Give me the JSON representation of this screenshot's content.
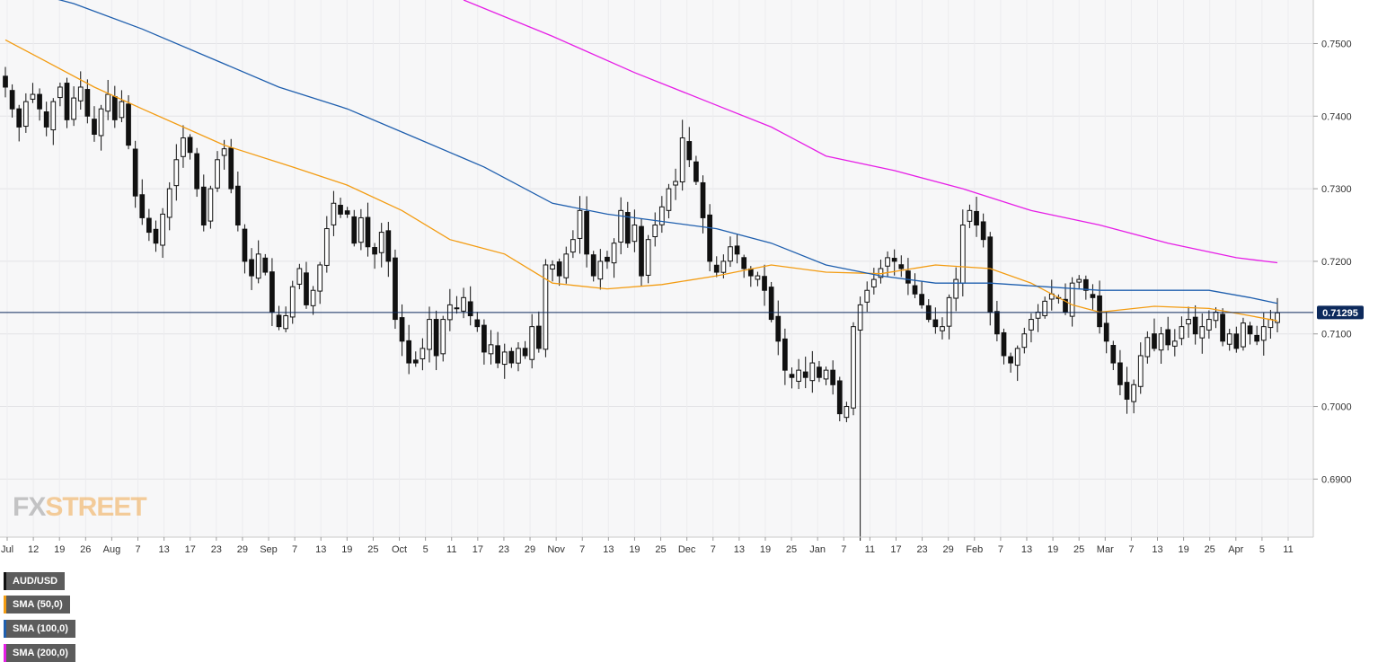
{
  "chart_data": {
    "type": "candlestick",
    "symbol": "AUD/USD",
    "last_price": "0.71295",
    "ylim": [
      0.682,
      0.756
    ],
    "y_ticks": [
      "0.7500",
      "0.7400",
      "0.7300",
      "0.7200",
      "0.7100",
      "0.7000",
      "0.6900"
    ],
    "x_ticks": [
      "Jul",
      "12",
      "19",
      "26",
      "Aug",
      "7",
      "13",
      "17",
      "23",
      "29",
      "Sep",
      "7",
      "13",
      "19",
      "25",
      "Oct",
      "5",
      "11",
      "17",
      "23",
      "29",
      "Nov",
      "7",
      "13",
      "19",
      "25",
      "Dec",
      "7",
      "13",
      "19",
      "25",
      "Jan",
      "7",
      "11",
      "17",
      "23",
      "29",
      "Feb",
      "7",
      "13",
      "19",
      "25",
      "Mar",
      "7",
      "13",
      "19",
      "25",
      "Apr",
      "5",
      "11"
    ],
    "grid": true,
    "legend": [
      {
        "label": "AUD/USD",
        "color": "#111111"
      },
      {
        "label": "SMA (50,0)",
        "color": "#f39c12"
      },
      {
        "label": "SMA (100,0)",
        "color": "#1f5fae"
      },
      {
        "label": "SMA (200,0)",
        "color": "#e61ee6"
      }
    ],
    "close_path": [
      0.744,
      0.741,
      0.7385,
      0.742,
      0.743,
      0.741,
      0.7385,
      0.742,
      0.744,
      0.7395,
      0.7425,
      0.744,
      0.74,
      0.7375,
      0.741,
      0.743,
      0.7395,
      0.742,
      0.736,
      0.729,
      0.726,
      0.724,
      0.7225,
      0.7265,
      0.73,
      0.734,
      0.737,
      0.735,
      0.73,
      0.725,
      0.73,
      0.734,
      0.7355,
      0.73,
      0.725,
      0.72,
      0.718,
      0.721,
      0.7185,
      0.713,
      0.711,
      0.7125,
      0.7165,
      0.719,
      0.714,
      0.716,
      0.7195,
      0.7245,
      0.728,
      0.7265,
      0.7265,
      0.7225,
      0.726,
      0.722,
      0.721,
      0.724,
      0.72,
      0.712,
      0.709,
      0.706,
      0.706,
      0.708,
      0.712,
      0.707,
      0.712,
      0.714,
      0.7135,
      0.715,
      0.7125,
      0.711,
      0.7075,
      0.7085,
      0.706,
      0.7075,
      0.706,
      0.708,
      0.707,
      0.711,
      0.708,
      0.7195,
      0.7195,
      0.718,
      0.721,
      0.723,
      0.727,
      0.721,
      0.718,
      0.72,
      0.72,
      0.7225,
      0.727,
      0.7225,
      0.725,
      0.718,
      0.723,
      0.725,
      0.7275,
      0.73,
      0.731,
      0.737,
      0.734,
      0.731,
      0.726,
      0.72,
      0.7185,
      0.72,
      0.722,
      0.721,
      0.719,
      0.718,
      0.718,
      0.716,
      0.712,
      0.709,
      0.705,
      0.704,
      0.705,
      0.704,
      0.706,
      0.704,
      0.705,
      0.703,
      0.699,
      0.7,
      0.711,
      0.714,
      0.716,
      0.7175,
      0.719,
      0.7205,
      0.72,
      0.719,
      0.717,
      0.7155,
      0.714,
      0.712,
      0.711,
      0.711,
      0.715,
      0.7175,
      0.725,
      0.727,
      0.725,
      0.723,
      0.713,
      0.71,
      0.707,
      0.706,
      0.708,
      0.71,
      0.712,
      0.713,
      0.7145,
      0.7155,
      0.715,
      0.713,
      0.717,
      0.7175,
      0.716,
      0.715,
      0.711,
      0.709,
      0.706,
      0.703,
      0.701,
      0.703,
      0.707,
      0.7095,
      0.708,
      0.71,
      0.7085,
      0.709,
      0.711,
      0.712,
      0.71,
      0.711,
      0.712,
      0.713,
      0.709,
      0.71,
      0.708,
      0.7115,
      0.71,
      0.709,
      0.711,
      0.712,
      0.7129
    ],
    "series": [
      {
        "name": "SMA (50,0)",
        "color": "#f39c12",
        "points": [
          [
            0,
            0.7505
          ],
          [
            5,
            0.748
          ],
          [
            13,
            0.744
          ],
          [
            20,
            0.741
          ],
          [
            32,
            0.736
          ],
          [
            42,
            0.733
          ],
          [
            50,
            0.7305
          ],
          [
            58,
            0.727
          ],
          [
            65,
            0.723
          ],
          [
            73,
            0.721
          ],
          [
            80,
            0.717
          ],
          [
            88,
            0.7162
          ],
          [
            96,
            0.7168
          ],
          [
            104,
            0.718
          ],
          [
            112,
            0.7195
          ],
          [
            120,
            0.7185
          ],
          [
            128,
            0.7183
          ],
          [
            136,
            0.7195
          ],
          [
            144,
            0.719
          ],
          [
            150,
            0.717
          ],
          [
            156,
            0.714
          ],
          [
            160,
            0.713
          ],
          [
            168,
            0.7138
          ],
          [
            176,
            0.7135
          ],
          [
            182,
            0.7125
          ],
          [
            186,
            0.7118
          ]
        ]
      },
      {
        "name": "SMA (100,0)",
        "color": "#1f5fae",
        "points": [
          [
            0,
            0.758
          ],
          [
            10,
            0.7555
          ],
          [
            20,
            0.752
          ],
          [
            30,
            0.748
          ],
          [
            40,
            0.744
          ],
          [
            50,
            0.741
          ],
          [
            60,
            0.737
          ],
          [
            70,
            0.733
          ],
          [
            80,
            0.728
          ],
          [
            88,
            0.7265
          ],
          [
            96,
            0.7255
          ],
          [
            104,
            0.7245
          ],
          [
            112,
            0.7225
          ],
          [
            120,
            0.7195
          ],
          [
            128,
            0.718
          ],
          [
            136,
            0.717
          ],
          [
            144,
            0.717
          ],
          [
            152,
            0.7165
          ],
          [
            160,
            0.716
          ],
          [
            168,
            0.716
          ],
          [
            176,
            0.716
          ],
          [
            182,
            0.715
          ],
          [
            186,
            0.7142
          ]
        ]
      },
      {
        "name": "SMA (200,0)",
        "color": "#e61ee6",
        "points": [
          [
            67,
            0.756
          ],
          [
            80,
            0.751
          ],
          [
            92,
            0.746
          ],
          [
            104,
            0.7415
          ],
          [
            112,
            0.7385
          ],
          [
            120,
            0.7345
          ],
          [
            130,
            0.7325
          ],
          [
            140,
            0.73
          ],
          [
            150,
            0.727
          ],
          [
            160,
            0.725
          ],
          [
            170,
            0.7225
          ],
          [
            180,
            0.7205
          ],
          [
            186,
            0.7198
          ]
        ]
      }
    ]
  },
  "watermark": {
    "part1": "FX",
    "part2": "STREET"
  }
}
